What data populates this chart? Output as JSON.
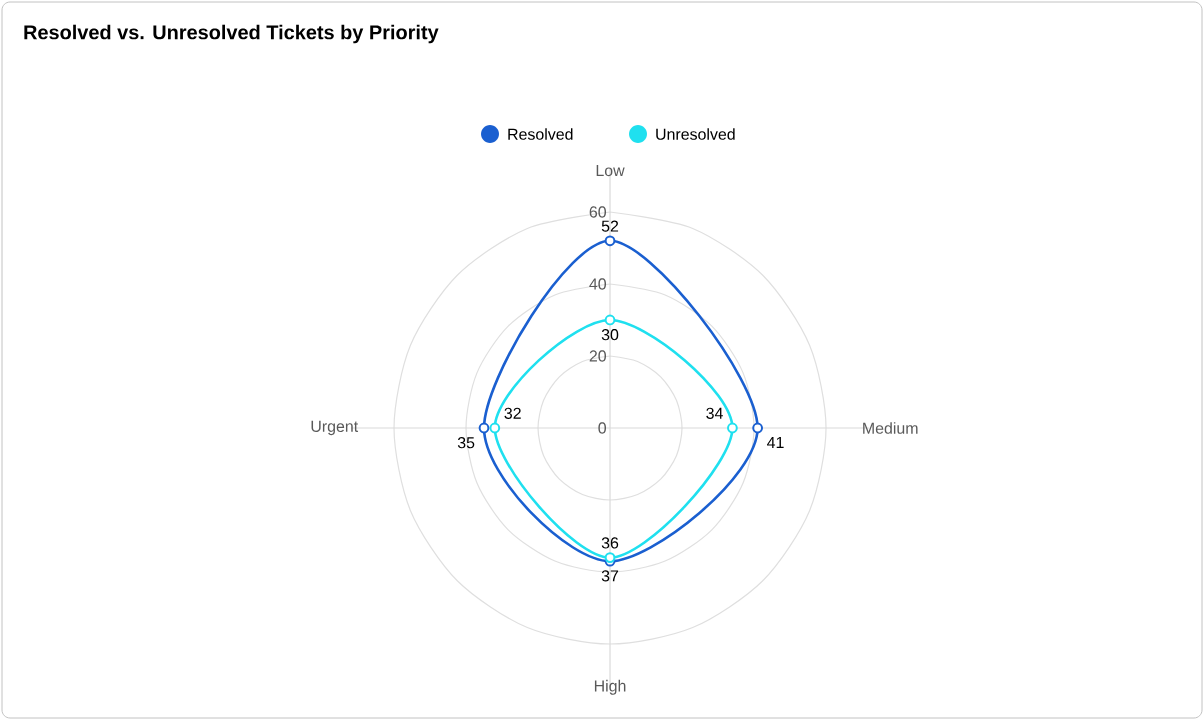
{
  "chart_data": {
    "type": "radar",
    "title": "Resolved vs. Unresolved Tickets by Priority",
    "categories": [
      "Low",
      "Medium",
      "High",
      "Urgent"
    ],
    "series": [
      {
        "name": "Resolved",
        "color": "#1a5fd0",
        "values": [
          52,
          41,
          37,
          35
        ]
      },
      {
        "name": "Unresolved",
        "color": "#1fe0ef",
        "values": [
          30,
          34,
          36,
          32
        ]
      }
    ],
    "ylim": [
      0,
      60
    ],
    "yticks": [
      0,
      20,
      40,
      60
    ],
    "grid": true,
    "legend": "top",
    "marker": "circle",
    "data_labels": true
  }
}
